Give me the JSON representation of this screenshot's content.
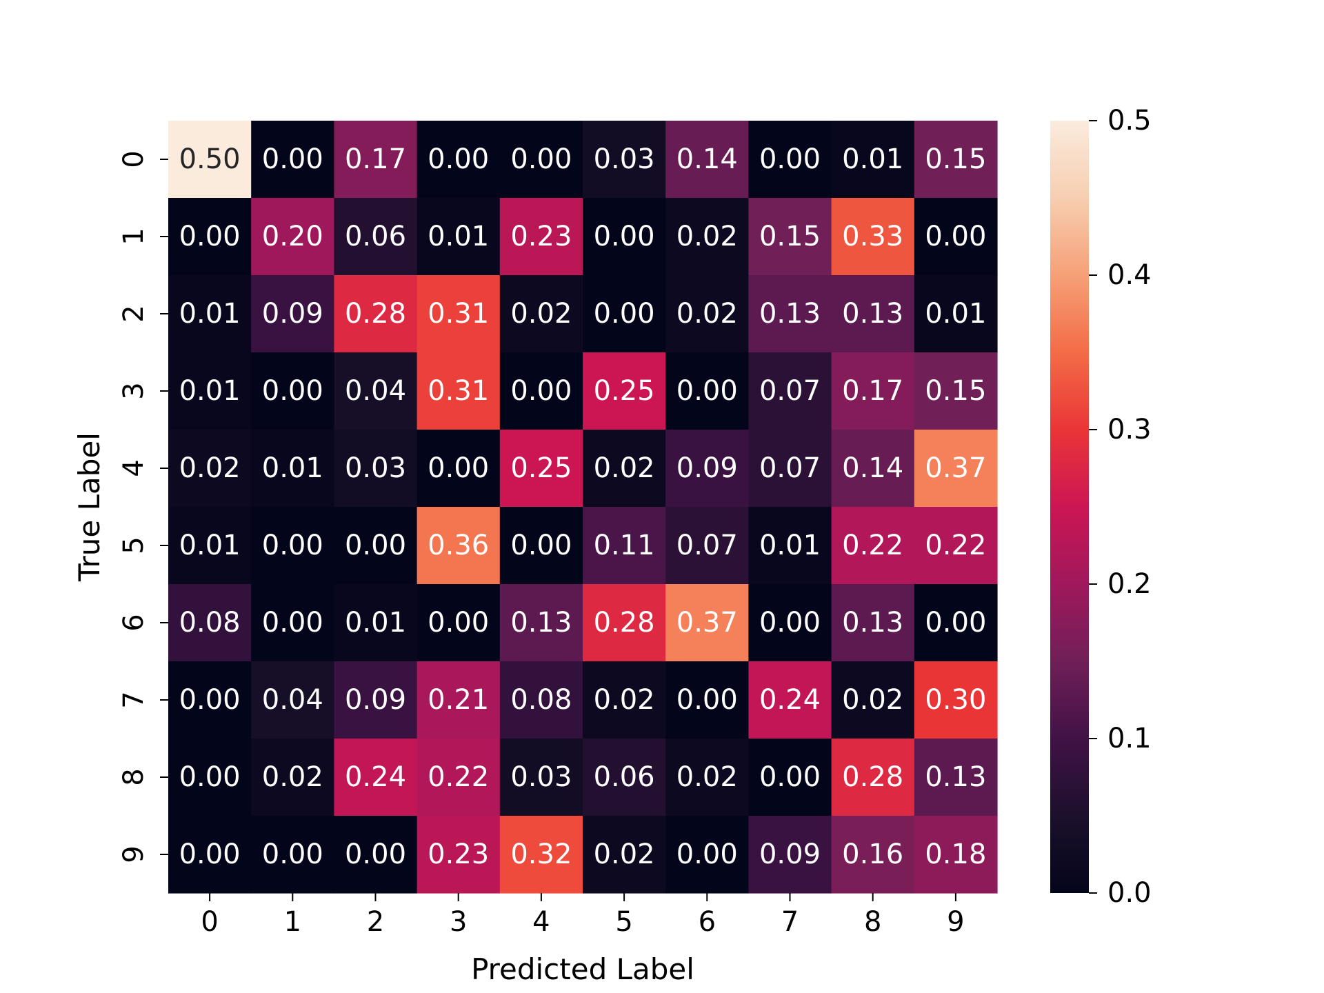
{
  "chart_data": {
    "type": "heatmap",
    "title": "",
    "xlabel": "Predicted Label",
    "ylabel": "True Label",
    "x_categories": [
      "0",
      "1",
      "2",
      "3",
      "4",
      "5",
      "6",
      "7",
      "8",
      "9"
    ],
    "y_categories": [
      "0",
      "1",
      "2",
      "3",
      "4",
      "5",
      "6",
      "7",
      "8",
      "9"
    ],
    "values": [
      [
        0.5,
        0.0,
        0.17,
        0.0,
        0.0,
        0.03,
        0.14,
        0.0,
        0.01,
        0.15
      ],
      [
        0.0,
        0.2,
        0.06,
        0.01,
        0.23,
        0.0,
        0.02,
        0.15,
        0.33,
        0.0
      ],
      [
        0.01,
        0.09,
        0.28,
        0.31,
        0.02,
        0.0,
        0.02,
        0.13,
        0.13,
        0.01
      ],
      [
        0.01,
        0.0,
        0.04,
        0.31,
        0.0,
        0.25,
        0.0,
        0.07,
        0.17,
        0.15
      ],
      [
        0.02,
        0.01,
        0.03,
        0.0,
        0.25,
        0.02,
        0.09,
        0.07,
        0.14,
        0.37
      ],
      [
        0.01,
        0.0,
        0.0,
        0.36,
        0.0,
        0.11,
        0.07,
        0.01,
        0.22,
        0.22
      ],
      [
        0.08,
        0.0,
        0.01,
        0.0,
        0.13,
        0.28,
        0.37,
        0.0,
        0.13,
        0.0
      ],
      [
        0.0,
        0.04,
        0.09,
        0.21,
        0.08,
        0.02,
        0.0,
        0.24,
        0.02,
        0.3
      ],
      [
        0.0,
        0.02,
        0.24,
        0.22,
        0.03,
        0.06,
        0.02,
        0.0,
        0.28,
        0.13
      ],
      [
        0.0,
        0.0,
        0.0,
        0.23,
        0.32,
        0.02,
        0.0,
        0.09,
        0.16,
        0.18
      ]
    ],
    "value_format": "0.00",
    "vmin": 0.0,
    "vmax": 0.5,
    "colormap": "rocket",
    "colorbar": {
      "ticks": [
        0.0,
        0.1,
        0.2,
        0.3,
        0.4,
        0.5
      ],
      "tick_labels": [
        "0.0",
        "0.1",
        "0.2",
        "0.3",
        "0.4",
        "0.5"
      ]
    },
    "grid": false,
    "colors": {
      "dark_text": "#262626",
      "light_text": "#ffffff",
      "axis": "#000000"
    }
  }
}
